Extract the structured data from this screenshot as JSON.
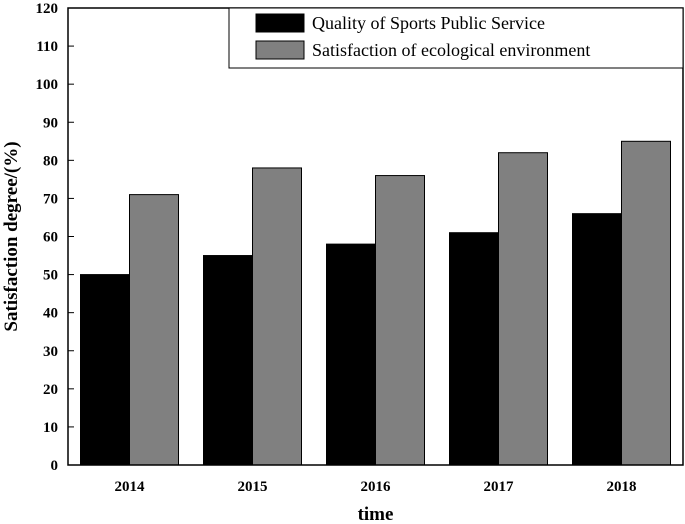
{
  "chart_data": {
    "type": "bar",
    "title": "",
    "xlabel": "time",
    "ylabel": "Satisfaction degree/(%)",
    "ylim": [
      0,
      120
    ],
    "yticks": [
      0,
      10,
      20,
      30,
      40,
      50,
      60,
      70,
      80,
      90,
      100,
      110,
      120
    ],
    "categories": [
      "2014",
      "2015",
      "2016",
      "2017",
      "2018"
    ],
    "series": [
      {
        "name": "Quality of Sports Public Service",
        "color": "#000000",
        "values": [
          50,
          55,
          58,
          61,
          66
        ]
      },
      {
        "name": "Satisfaction of ecological environment",
        "color": "#808080",
        "values": [
          71,
          78,
          76,
          82,
          85
        ]
      }
    ],
    "legend_position": "top-right",
    "grid": false
  }
}
